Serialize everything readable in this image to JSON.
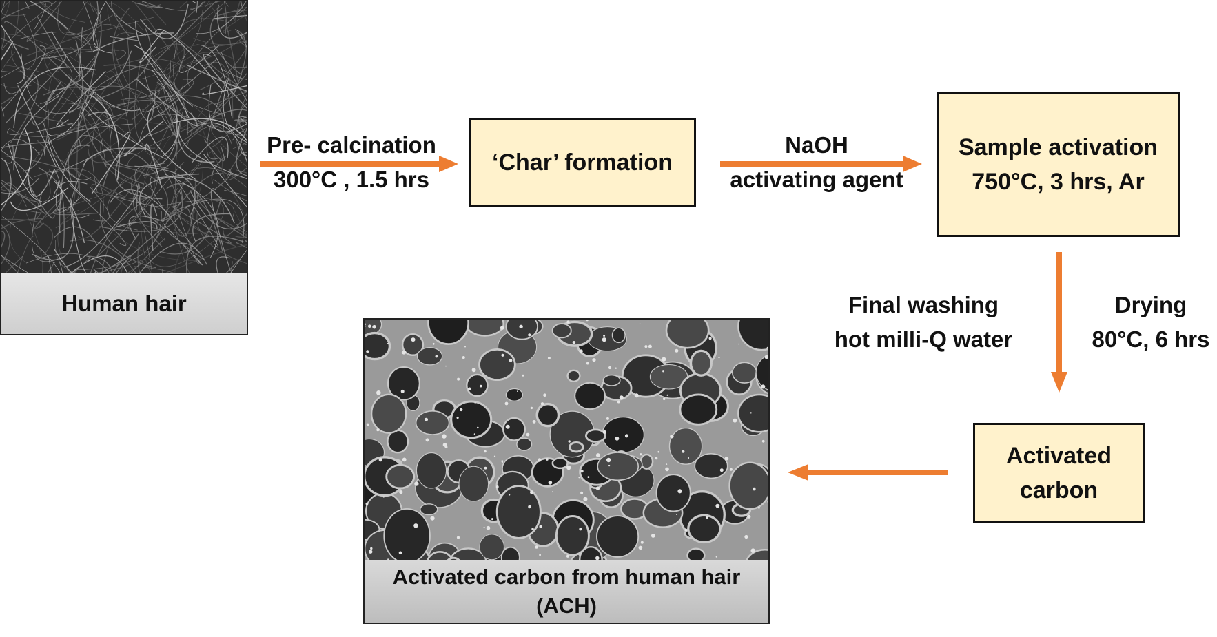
{
  "photos": {
    "hair_caption": "Human hair",
    "ach_caption_line1": "Activated carbon from human hair",
    "ach_caption_line2": "(ACH)"
  },
  "boxes": {
    "char": "‘Char’ formation",
    "activation_line1": "Sample activation",
    "activation_line2": "750°C, 3 hrs, Ar",
    "carbon_line1": "Activated",
    "carbon_line2": "carbon"
  },
  "labels": {
    "precalc_line1": "Pre- calcination",
    "precalc_line2": "300°C , 1.5 hrs",
    "naoh_line1": "NaOH",
    "naoh_line2": "activating agent",
    "washing_line1": "Final washing",
    "washing_line2": "hot milli-Q water",
    "drying_line1": "Drying",
    "drying_line2": "80°C, 6 hrs"
  },
  "colors": {
    "arrow": "#ed7d31",
    "box_fill": "#fff2cc"
  }
}
